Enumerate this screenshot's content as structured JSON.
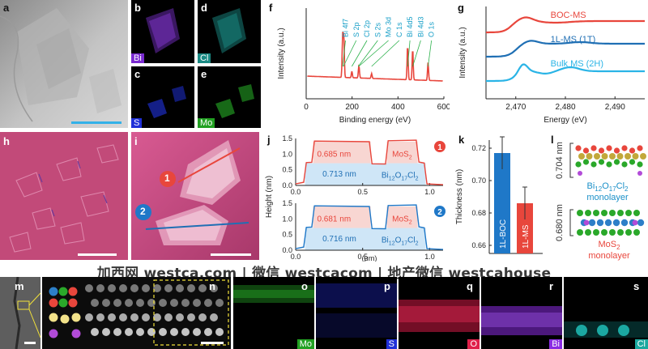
{
  "panel_letters": {
    "a": "a",
    "b": "b",
    "c": "c",
    "d": "d",
    "e": "e",
    "f": "f",
    "g": "g",
    "h": "h",
    "i": "i",
    "j": "j",
    "k": "k",
    "l": "l",
    "m": "m",
    "n": "n",
    "o": "o",
    "p": "p",
    "q": "q",
    "r": "r",
    "s": "s"
  },
  "eds_tags": {
    "b": "Bi",
    "c": "S",
    "d": "Cl",
    "e": "Mo",
    "o": "Mo",
    "p": "S",
    "q": "O",
    "r": "Bi",
    "s": "Cl"
  },
  "eds_colors": {
    "Bi": "#8a2be2",
    "S": "#2030d8",
    "Cl": "#18b8b0",
    "Mo": "#2aa82a",
    "O": "#e0204a"
  },
  "afm_markers": {
    "one": "1",
    "two": "2"
  },
  "watermark": "加西网 westca.com | 微信 westcacom | 地产微信 westcahouse",
  "chart_data": [
    {
      "id": "f",
      "type": "line",
      "title": "",
      "xlabel": "Binding energy (eV)",
      "ylabel": "Intensity (a.u.)",
      "xlim": [
        0,
        600
      ],
      "xticks": [
        "0",
        "200",
        "400",
        "600"
      ],
      "xtick_values": [
        0,
        200,
        400,
        600
      ],
      "peak_labels": [
        "Bi 4f7",
        "S 2p",
        "Cl 2p",
        "S 2s",
        "Mo 3d",
        "C 1s",
        "Bi 4d5",
        "Bi 4d3",
        "O 1s"
      ],
      "peak_positions": [
        159,
        162,
        199,
        227,
        229,
        285,
        442,
        464,
        531
      ],
      "color": "#e8463c",
      "peak_label_color": "#1aa0c8"
    },
    {
      "id": "g",
      "type": "line",
      "title": "",
      "xlabel": "Energy (eV)",
      "ylabel": "Intensity (a.u.)",
      "xlim": [
        2464,
        2496
      ],
      "xticks": [
        "2,470",
        "2,480",
        "2,490"
      ],
      "xtick_values": [
        2470,
        2480,
        2490
      ],
      "series": [
        {
          "name": "BOC-MS",
          "color": "#e8463c"
        },
        {
          "name": "1L-MS (1T)",
          "color": "#1f6fb4"
        },
        {
          "name": "Bulk MS (2H)",
          "color": "#2ab4e6"
        }
      ]
    },
    {
      "id": "j",
      "type": "line",
      "title": "",
      "xlabel": "(μm)",
      "ylabel": "Height (nm)",
      "xlim": [
        0,
        1.1
      ],
      "xticks": [
        "0.0",
        "0.5",
        "1.0"
      ],
      "xtick_values": [
        0,
        0.5,
        1.0
      ],
      "top": {
        "marker": "1",
        "ylim": [
          0,
          1.5
        ],
        "yticks": [
          "0.0",
          "0.5",
          "1.0",
          "1.5"
        ],
        "annotations": [
          "0.685 nm",
          "0.713 nm",
          "MoS2",
          "Bi12O17Cl2"
        ],
        "labels_rich": {
          "mos2": [
            "MoS",
            "2"
          ],
          "boc": [
            "Bi",
            "12",
            "O",
            "17",
            "Cl",
            "2"
          ]
        }
      },
      "bottom": {
        "marker": "2",
        "ylim": [
          0,
          1.5
        ],
        "yticks": [
          "0.0",
          "0.5",
          "1.0",
          "1.5"
        ],
        "annotations": [
          "0.681 nm",
          "0.716 nm",
          "MoS2",
          "Bi12O17Cl2"
        ]
      }
    },
    {
      "id": "k",
      "type": "bar",
      "title": "",
      "ylabel": "Thickness (nm)",
      "categories": [
        "1L-BOC",
        "1L-MS"
      ],
      "values": [
        0.717,
        0.686
      ],
      "errors": [
        0.01,
        0.01
      ],
      "colors": [
        "#1f78c8",
        "#e8463c"
      ],
      "ylim": [
        0.655,
        0.725
      ],
      "yticks": [
        "0.66",
        "0.68",
        "0.70",
        "0.72"
      ],
      "ytick_values": [
        0.66,
        0.68,
        0.7,
        0.72
      ]
    }
  ],
  "schematic_l": {
    "upper_thickness": "0.704 nm",
    "upper_label_rich": [
      "Bi",
      "12",
      "O",
      "17",
      "Cl",
      "2"
    ],
    "upper_caption": "monolayer",
    "lower_thickness": "0.680 nm",
    "lower_label_rich": [
      "MoS",
      "2"
    ],
    "lower_caption": "monolayer"
  }
}
